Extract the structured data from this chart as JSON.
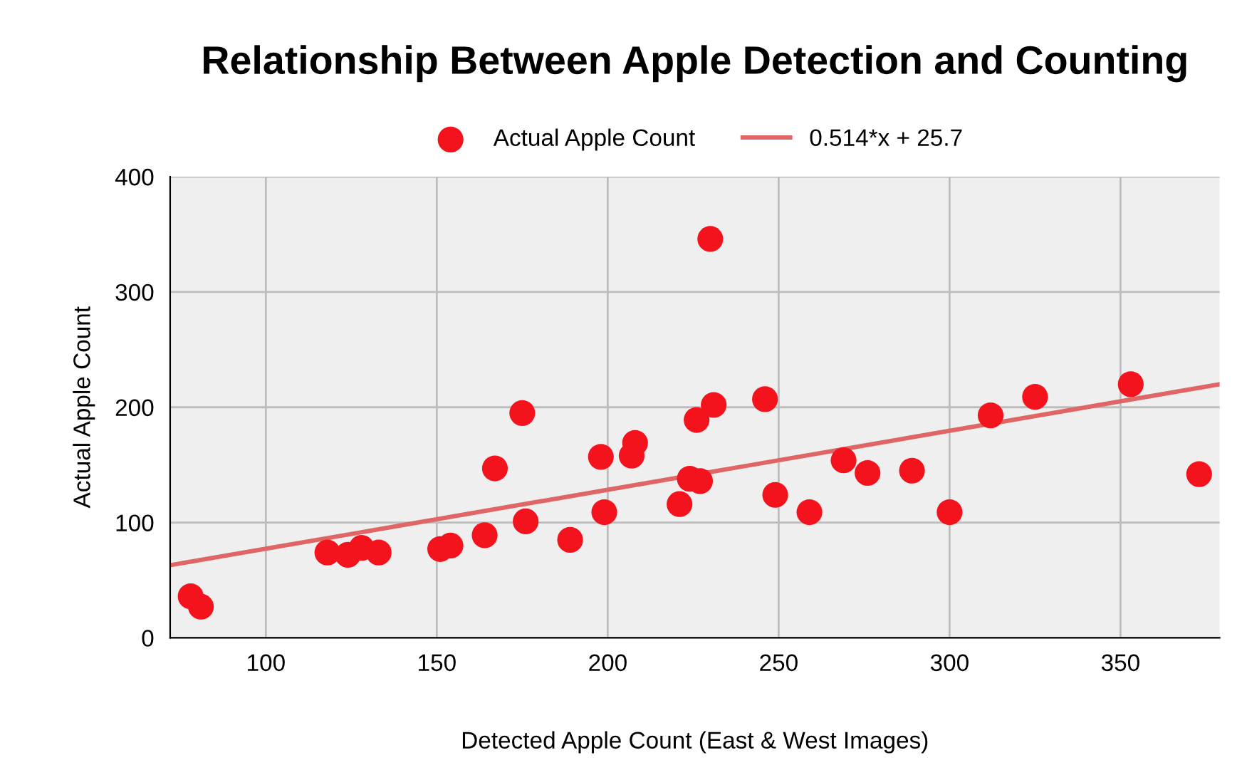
{
  "chart_data": {
    "type": "scatter",
    "title": "Relationship Between Apple Detection and Counting",
    "xlabel": "Detected Apple Count (East & West Images)",
    "ylabel": "Actual Apple Count",
    "xlim": [
      72,
      379
    ],
    "ylim": [
      0,
      400
    ],
    "xticks": [
      100,
      150,
      200,
      250,
      300,
      350
    ],
    "yticks": [
      0,
      100,
      200,
      300,
      400
    ],
    "grid": true,
    "legend": "top",
    "series": [
      {
        "name": "Actual Apple Count",
        "marker": "circle",
        "color": "#f4131d",
        "x": [
          78,
          81,
          118,
          124,
          128,
          133,
          151,
          154,
          164,
          167,
          175,
          176,
          189,
          198,
          199,
          207,
          208,
          221,
          224,
          226,
          227,
          230,
          231,
          246,
          249,
          259,
          269,
          276,
          289,
          300,
          312,
          325,
          353,
          373
        ],
        "values": [
          36,
          27,
          74,
          72,
          78,
          74,
          77,
          80,
          89,
          147,
          195,
          101,
          85,
          157,
          109,
          158,
          169,
          116,
          138,
          189,
          136,
          346,
          202,
          207,
          124,
          109,
          154,
          143,
          145,
          109,
          193,
          209,
          220,
          142
        ]
      },
      {
        "name": "0.514*x + 25.7",
        "type": "line",
        "color": "#e06666",
        "x": [
          72,
          379
        ],
        "values": [
          63,
          220
        ]
      }
    ]
  }
}
